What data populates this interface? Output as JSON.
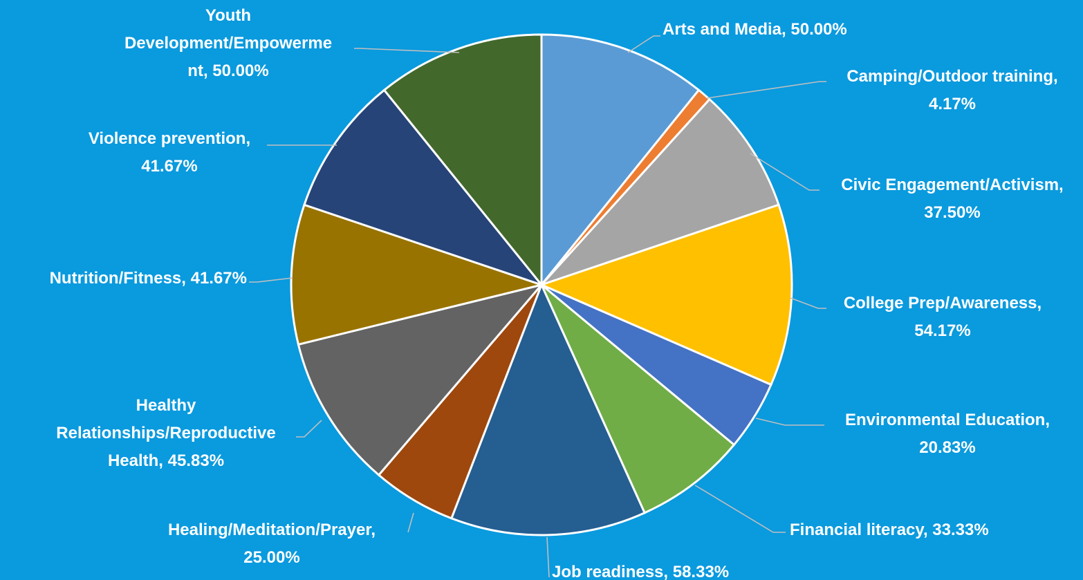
{
  "chart_data": {
    "type": "pie",
    "title": "",
    "slices": [
      {
        "name": "Arts and Media",
        "value": 50.0,
        "display": "50.00%",
        "color": "#5b9bd5"
      },
      {
        "name": "Camping/Outdoor training",
        "value": 4.17,
        "display": "4.17%",
        "color": "#ed7d31"
      },
      {
        "name": "Civic Engagement/Activism",
        "value": 37.5,
        "display": "37.50%",
        "color": "#a5a5a5"
      },
      {
        "name": "College Prep/Awareness",
        "value": 54.17,
        "display": "54.17%",
        "color": "#ffc000"
      },
      {
        "name": "Environmental Education",
        "value": 20.83,
        "display": "20.83%",
        "color": "#4472c4"
      },
      {
        "name": "Financial literacy",
        "value": 33.33,
        "display": "33.33%",
        "color": "#70ad47"
      },
      {
        "name": "Job readiness",
        "value": 58.33,
        "display": "58.33%",
        "color": "#255e91"
      },
      {
        "name": "Healing/Meditation/Prayer",
        "value": 25.0,
        "display": "25.00%",
        "color": "#9e480e"
      },
      {
        "name": "Healthy Relationships/Reproductive Health",
        "value": 45.83,
        "display": "45.83%",
        "color": "#636363"
      },
      {
        "name": "Nutrition/Fitness",
        "value": 41.67,
        "display": "41.67%",
        "color": "#997300"
      },
      {
        "name": "Violence prevention",
        "value": 41.67,
        "display": "41.67%",
        "color": "#264478"
      },
      {
        "name": "Youth Development/Empowerment",
        "value": 50.0,
        "display": "50.00%",
        "color": "#43682b"
      }
    ],
    "legend": "none",
    "data_labels": "category name and value, outside with leader lines"
  }
}
